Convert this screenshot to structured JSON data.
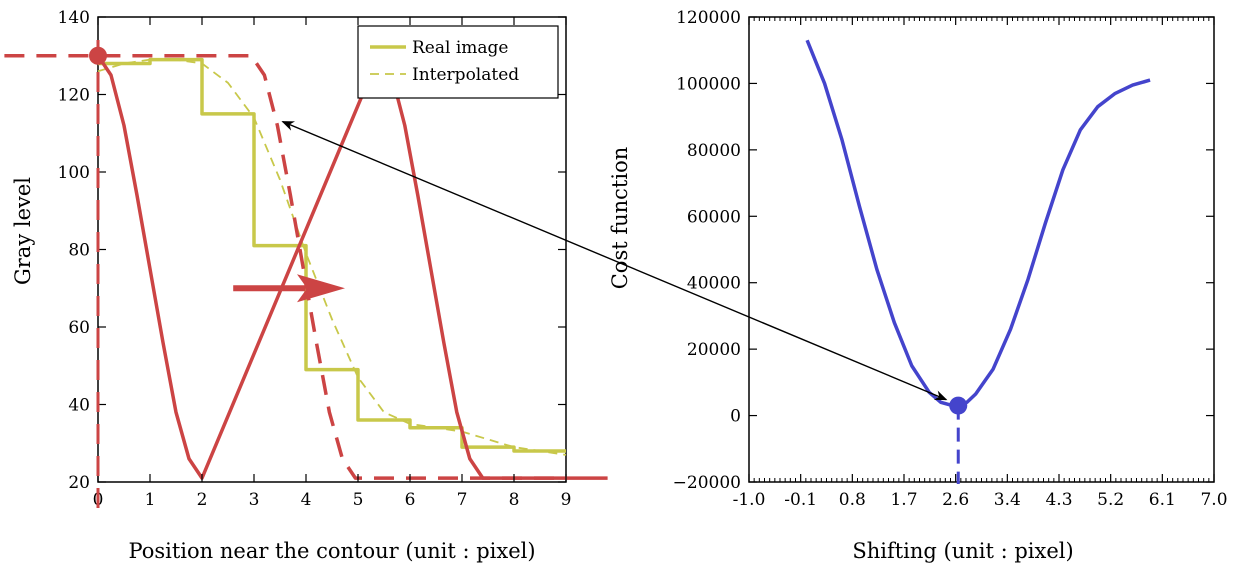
{
  "colors": {
    "red": "#cc4444",
    "yellow": "#c8c84a",
    "blue": "#4444cc",
    "black": "#000000"
  },
  "chart_data": [
    {
      "type": "line",
      "xlabel": "Position near the contour (unit : pixel)",
      "ylabel": "Gray level",
      "xlim": [
        0,
        9
      ],
      "ylim": [
        20,
        140
      ],
      "xticks": [
        "0",
        "1",
        "2",
        "3",
        "4",
        "5",
        "6",
        "7",
        "8",
        "9"
      ],
      "yticks": [
        "20",
        "40",
        "60",
        "80",
        "100",
        "120",
        "140"
      ],
      "legend": {
        "position": "top-right",
        "entries": [
          "Real image",
          "Interpolated"
        ]
      },
      "series": [
        {
          "name": "Real image",
          "style": "step-solid",
          "color": "#c8c84a",
          "x": [
            0,
            1,
            2,
            3,
            4,
            5,
            6,
            7,
            8,
            9
          ],
          "y": [
            128,
            129,
            115,
            81,
            49,
            36,
            34,
            29,
            28,
            28
          ]
        },
        {
          "name": "Interpolated",
          "style": "dashed-thin",
          "color": "#c8c84a",
          "x": [
            0,
            0.5,
            1,
            1.5,
            2,
            2.5,
            3,
            3.5,
            4,
            4.5,
            5,
            5.5,
            6,
            6.5,
            7,
            7.5,
            8,
            8.5,
            9
          ],
          "y": [
            126,
            128,
            129,
            129,
            128,
            123,
            114,
            98,
            79,
            62,
            47,
            38,
            35,
            34,
            33,
            31,
            29,
            28,
            27
          ]
        },
        {
          "style": "solid-thick",
          "color": "#cc4444",
          "x": [
            0,
            0.25,
            0.5,
            0.75,
            1,
            1.25,
            1.5,
            1.75,
            2,
            5.4,
            5.65,
            5.9,
            6.15,
            6.4,
            6.65,
            6.9,
            7.15,
            7.4,
            9.8
          ],
          "y": [
            130,
            125,
            112,
            94,
            75,
            56,
            38,
            26,
            21,
            130,
            125,
            112,
            94,
            75,
            56,
            38,
            26,
            21,
            21
          ]
        },
        {
          "style": "dashed-thick",
          "color": "#cc4444",
          "x": [
            -1.8,
            2.95,
            3.2,
            3.45,
            3.7,
            3.95,
            4.2,
            4.45,
            4.7,
            4.95,
            9.0
          ],
          "y": [
            130,
            130,
            125,
            112,
            94,
            75,
            56,
            38,
            26,
            21,
            21
          ]
        }
      ],
      "markers": [
        {
          "x": 0,
          "y": 130,
          "color": "#cc4444"
        }
      ],
      "annotations": [
        {
          "type": "arrow",
          "from_x": 2.6,
          "from_y": 70,
          "to_x": 4.75,
          "to_y": 70,
          "color": "#cc4444"
        }
      ]
    },
    {
      "type": "line",
      "xlabel": "Shifting (unit : pixel)",
      "ylabel": "Cost function",
      "xlim": [
        -1.0,
        7.0
      ],
      "ylim": [
        -20000,
        120000
      ],
      "xticks": [
        "-1.0",
        "-0.1",
        "0.8",
        "1.7",
        "2.6",
        "3.4",
        "4.3",
        "5.2",
        "6.1",
        "7.0"
      ],
      "yticks": [
        "−20000",
        "0",
        "20000",
        "40000",
        "60000",
        "80000",
        "100000",
        "120000"
      ],
      "series": [
        {
          "style": "solid",
          "color": "#4444cc",
          "x": [
            0,
            0.3,
            0.6,
            0.9,
            1.2,
            1.5,
            1.8,
            2.1,
            2.3,
            2.5,
            2.6,
            2.75,
            2.9,
            3.2,
            3.5,
            3.8,
            4.1,
            4.4,
            4.7,
            5.0,
            5.3,
            5.6,
            5.9
          ],
          "y": [
            113000,
            100000,
            83000,
            63000,
            44000,
            28000,
            15000,
            7000,
            4000,
            3000,
            3000,
            4000,
            6500,
            14000,
            26000,
            41000,
            58000,
            74000,
            86000,
            93000,
            97000,
            99500,
            101000
          ]
        }
      ],
      "markers": [
        {
          "x": 2.6,
          "y": 3000,
          "color": "#4444cc"
        }
      ],
      "annotations": [
        {
          "type": "arrow-double",
          "from_x": 2.6,
          "from_y": 3000,
          "to_chart": 0,
          "to_x": 3.55,
          "to_y": 113,
          "color": "#000000"
        }
      ]
    }
  ]
}
